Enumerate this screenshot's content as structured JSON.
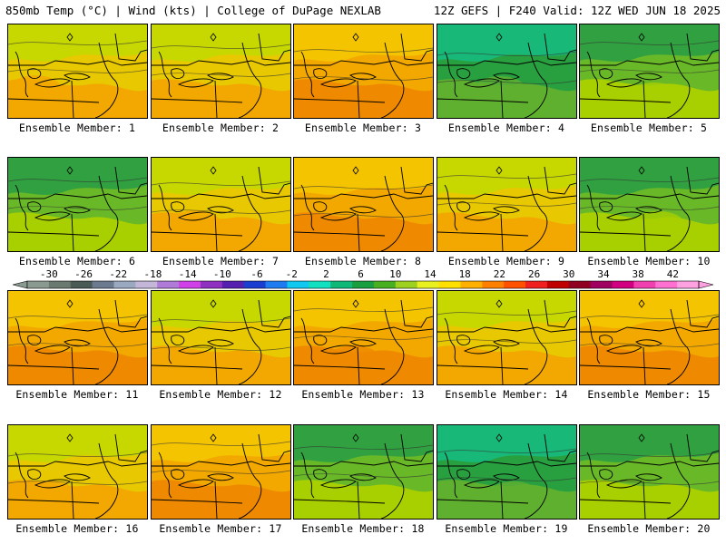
{
  "header": {
    "title_left": "850mb Temp (°C) | Wind (kts) | College of DuPage NEXLAB",
    "title_right": "12Z GEFS | F240 Valid: 12Z WED JUN 18 2025"
  },
  "colorbar": {
    "tick_labels": [
      "-30",
      "-26",
      "-22",
      "-18",
      "-14",
      "-10",
      "-6",
      "-2",
      "2",
      "6",
      "10",
      "14",
      "18",
      "22",
      "26",
      "30",
      "34",
      "38",
      "42"
    ],
    "colors": [
      "#8a9a90",
      "#6a7a70",
      "#4a5a55",
      "#6c7a90",
      "#9aa8c0",
      "#c3b6d8",
      "#b07ad8",
      "#d040e8",
      "#9030c0",
      "#5520b0",
      "#1a3fd0",
      "#1e7cf0",
      "#10c8f0",
      "#10e0c0",
      "#10b878",
      "#18a040",
      "#48b020",
      "#9ed020",
      "#e8f020",
      "#ffe000",
      "#ffb000",
      "#ff8000",
      "#ff5000",
      "#f02020",
      "#c00000",
      "#900020",
      "#a00060",
      "#d00080",
      "#f040b0",
      "#ff70d0",
      "#ffa0e0"
    ]
  },
  "members": [
    {
      "label": "Ensemble Member: 1"
    },
    {
      "label": "Ensemble Member: 2"
    },
    {
      "label": "Ensemble Member: 3"
    },
    {
      "label": "Ensemble Member: 4"
    },
    {
      "label": "Ensemble Member: 5"
    },
    {
      "label": "Ensemble Member: 6"
    },
    {
      "label": "Ensemble Member: 7"
    },
    {
      "label": "Ensemble Member: 8"
    },
    {
      "label": "Ensemble Member: 9"
    },
    {
      "label": "Ensemble Member: 10"
    },
    {
      "label": "Ensemble Member: 11"
    },
    {
      "label": "Ensemble Member: 12"
    },
    {
      "label": "Ensemble Member: 13"
    },
    {
      "label": "Ensemble Member: 14"
    },
    {
      "label": "Ensemble Member: 15"
    },
    {
      "label": "Ensemble Member: 16"
    },
    {
      "label": "Ensemble Member: 17"
    },
    {
      "label": "Ensemble Member: 18"
    },
    {
      "label": "Ensemble Member: 19"
    },
    {
      "label": "Ensemble Member: 20"
    }
  ],
  "palettes": {
    "warm": [
      "#f4c400",
      "#f3a800",
      "#ef8a00"
    ],
    "mid": [
      "#c6d800",
      "#e8c800",
      "#f2a800"
    ],
    "cool": [
      "#30a040",
      "#68b828",
      "#a8cf00"
    ],
    "cold": [
      "#18b878",
      "#28a040",
      "#60b030"
    ]
  },
  "member_themes": [
    "mid",
    "mid",
    "warm",
    "cold",
    "cool",
    "cool",
    "mid",
    "warm",
    "mid",
    "cool",
    "warm",
    "mid",
    "warm",
    "mid",
    "warm",
    "mid",
    "warm",
    "cool",
    "cold",
    "cool"
  ]
}
